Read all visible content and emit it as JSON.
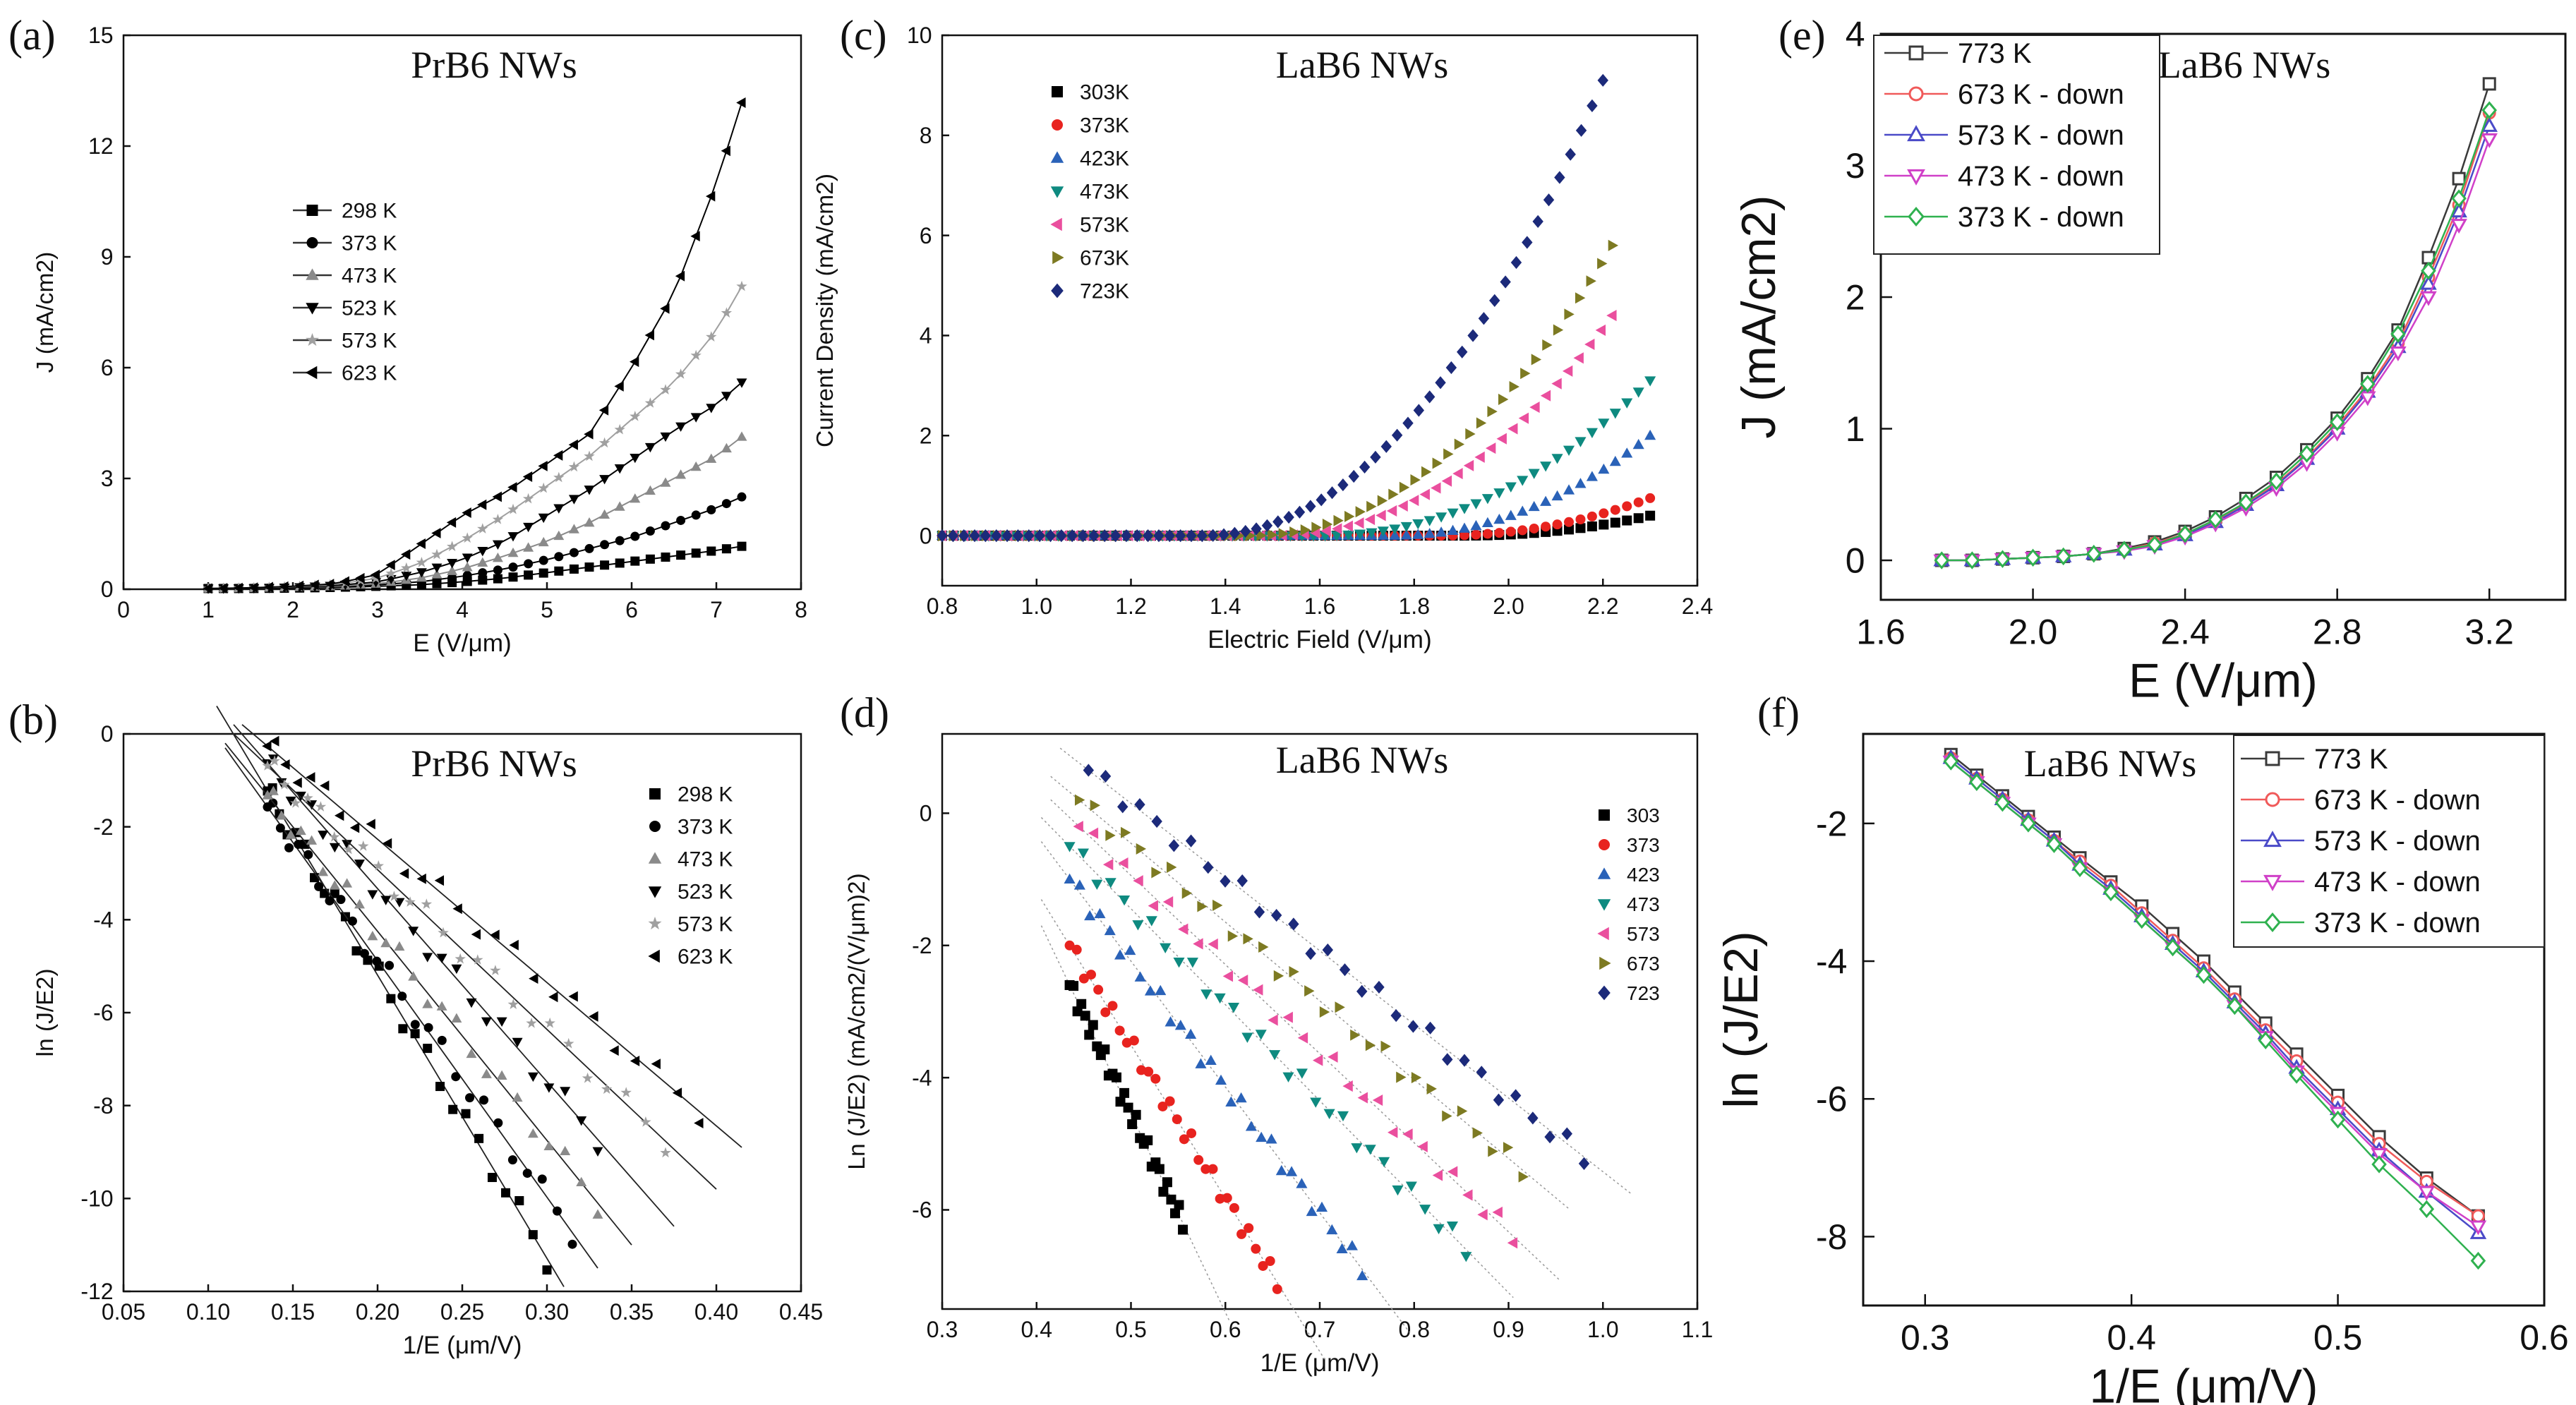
{
  "chart_data": [
    {
      "panel": "(a)",
      "type": "line",
      "title": "PrB6 NWs",
      "xlabel": "E (V/μm)",
      "ylabel": "J (mA/cm2)",
      "xlim": [
        0,
        8
      ],
      "ylim": [
        0,
        15
      ],
      "xticks": [
        0,
        1,
        2,
        3,
        4,
        5,
        6,
        7,
        8
      ],
      "yticks": [
        0,
        3,
        6,
        9,
        12,
        15
      ],
      "legend_position": "center-left",
      "x": [
        1.0,
        1.5,
        2.0,
        2.5,
        3.0,
        3.5,
        4.0,
        4.5,
        5.0,
        5.5,
        6.0,
        6.5,
        7.0,
        7.4
      ],
      "series": [
        {
          "name": "298 K",
          "marker": "square",
          "color": "#000000",
          "values": [
            0.02,
            0.02,
            0.03,
            0.05,
            0.08,
            0.12,
            0.2,
            0.3,
            0.45,
            0.6,
            0.75,
            0.9,
            1.05,
            1.2
          ]
        },
        {
          "name": "373 K",
          "marker": "circle",
          "color": "#000000",
          "values": [
            0.02,
            0.03,
            0.04,
            0.07,
            0.12,
            0.2,
            0.35,
            0.55,
            0.8,
            1.1,
            1.4,
            1.8,
            2.2,
            2.6
          ]
        },
        {
          "name": "473 K",
          "marker": "triangle-up",
          "color": "#8a8a8a",
          "values": [
            0.02,
            0.03,
            0.05,
            0.08,
            0.15,
            0.3,
            0.55,
            0.9,
            1.3,
            1.8,
            2.4,
            3.0,
            3.6,
            4.3
          ]
        },
        {
          "name": "523 K",
          "marker": "triangle-down",
          "color": "#000000",
          "values": [
            0.02,
            0.03,
            0.05,
            0.1,
            0.2,
            0.45,
            0.8,
            1.3,
            2.0,
            2.7,
            3.5,
            4.3,
            5.0,
            5.8
          ]
        },
        {
          "name": "573 K",
          "marker": "star",
          "color": "#a0a0a0",
          "values": [
            0.02,
            0.04,
            0.07,
            0.13,
            0.3,
            0.7,
            1.3,
            2.0,
            2.8,
            3.6,
            4.6,
            5.6,
            7.0,
            8.6
          ]
        },
        {
          "name": "623 K",
          "marker": "triangle-left",
          "color": "#000000",
          "values": [
            0.02,
            0.04,
            0.08,
            0.15,
            0.4,
            1.2,
            2.0,
            2.6,
            3.4,
            4.2,
            6.0,
            8.0,
            11.0,
            13.9
          ]
        }
      ]
    },
    {
      "panel": "(b)",
      "type": "scatter",
      "title": "PrB6 NWs",
      "xlabel": "1/E (μm/V)",
      "ylabel": "ln (J/E2)",
      "xlim": [
        0.05,
        0.45
      ],
      "ylim": [
        -12,
        0
      ],
      "xticks": [
        0.05,
        0.1,
        0.15,
        0.2,
        0.25,
        0.3,
        0.35,
        0.4,
        0.45
      ],
      "yticks": [
        -12,
        -10,
        -8,
        -6,
        -4,
        -2,
        0
      ],
      "legend_position": "top-right",
      "series": [
        {
          "name": "298 K",
          "marker": "square",
          "color": "#000000",
          "x_range": [
            0.135,
            0.3
          ],
          "fit": [
            0.105,
            0.6,
            0.31,
            -11.9
          ]
        },
        {
          "name": "373 K",
          "marker": "circle",
          "color": "#000000",
          "x_range": [
            0.135,
            0.315
          ],
          "fit": [
            0.11,
            -0.3,
            0.33,
            -11.5
          ]
        },
        {
          "name": "473 K",
          "marker": "triangle-up",
          "color": "#8a8a8a",
          "x_range": [
            0.135,
            0.33
          ],
          "fit": [
            0.11,
            -0.2,
            0.35,
            -11.0
          ]
        },
        {
          "name": "523 K",
          "marker": "triangle-down",
          "color": "#000000",
          "x_range": [
            0.135,
            0.33
          ],
          "fit": [
            0.115,
            0.2,
            0.375,
            -10.6
          ]
        },
        {
          "name": "573 K",
          "marker": "star",
          "color": "#a0a0a0",
          "x_range": [
            0.135,
            0.37
          ],
          "fit": [
            0.115,
            0.0,
            0.4,
            -9.8
          ]
        },
        {
          "name": "623 K",
          "marker": "triangle-left",
          "color": "#000000",
          "x_range": [
            0.135,
            0.39
          ],
          "fit": [
            0.12,
            0.2,
            0.415,
            -8.9
          ]
        }
      ]
    },
    {
      "panel": "(c)",
      "type": "scatter",
      "title": "LaB6 NWs",
      "xlabel": "Electric Field (V/μm)",
      "ylabel": "Current Density (mA/cm2)",
      "xlim": [
        0.8,
        2.4
      ],
      "ylim": [
        -1,
        10
      ],
      "xticks": [
        0.8,
        1.0,
        1.2,
        1.4,
        1.6,
        1.8,
        2.0,
        2.2,
        2.4
      ],
      "yticks": [
        0,
        2,
        4,
        6,
        8,
        10
      ],
      "legend_position": "top-left",
      "series": [
        {
          "name": "303K",
          "marker": "square",
          "color": "#000000",
          "x_end": 2.3,
          "y_end": 0.4,
          "onset": 1.9
        },
        {
          "name": "373K",
          "marker": "circle",
          "color": "#e8231f",
          "x_end": 2.3,
          "y_end": 0.75,
          "onset": 1.85
        },
        {
          "name": "423K",
          "marker": "triangle-up",
          "color": "#2a62b8",
          "x_end": 2.3,
          "y_end": 2.0,
          "onset": 1.75
        },
        {
          "name": "473K",
          "marker": "triangle-down",
          "color": "#0e8a80",
          "x_end": 2.3,
          "y_end": 3.1,
          "onset": 1.6
        },
        {
          "name": "573K",
          "marker": "triangle-left",
          "color": "#ea4f9e",
          "x_end": 2.22,
          "y_end": 4.4,
          "onset": 1.5
        },
        {
          "name": "673K",
          "marker": "triangle-right",
          "color": "#7d7a22",
          "x_end": 2.22,
          "y_end": 5.8,
          "onset": 1.45
        },
        {
          "name": "723K",
          "marker": "diamond",
          "color": "#1c2a7a",
          "x_end": 2.2,
          "y_end": 9.1,
          "onset": 1.35
        }
      ]
    },
    {
      "panel": "(d)",
      "type": "scatter",
      "title": "LaB6 NWs",
      "xlabel": "1/E (μm/V)",
      "ylabel": "Ln (J/E2) (mA/cm2/(V/μm)2)",
      "xlim": [
        0.3,
        1.1
      ],
      "ylim": [
        -7.5,
        1.2
      ],
      "xticks": [
        0.3,
        0.4,
        0.5,
        0.6,
        0.7,
        0.8,
        0.9,
        1.0,
        1.1
      ],
      "yticks": [
        -6,
        -4,
        -2,
        0
      ],
      "legend_position": "top-right",
      "series": [
        {
          "name": "303",
          "marker": "square",
          "color": "#000000",
          "start": [
            0.435,
            -2.6
          ],
          "end": [
            0.555,
            -6.2
          ]
        },
        {
          "name": "373",
          "marker": "circle",
          "color": "#e8231f",
          "start": [
            0.435,
            -2.0
          ],
          "end": [
            0.655,
            -7.1
          ]
        },
        {
          "name": "423",
          "marker": "triangle-up",
          "color": "#2a62b8",
          "start": [
            0.435,
            -1.0
          ],
          "end": [
            0.745,
            -6.9
          ]
        },
        {
          "name": "473",
          "marker": "triangle-down",
          "color": "#0e8a80",
          "start": [
            0.435,
            -0.5
          ],
          "end": [
            0.855,
            -6.6
          ]
        },
        {
          "name": "573",
          "marker": "triangle-left",
          "color": "#ea4f9e",
          "start": [
            0.445,
            -0.2
          ],
          "end": [
            0.905,
            -6.4
          ]
        },
        {
          "name": "673",
          "marker": "triangle-right",
          "color": "#7d7a22",
          "start": [
            0.445,
            0.2
          ],
          "end": [
            0.915,
            -5.4
          ]
        },
        {
          "name": "723",
          "marker": "diamond",
          "color": "#1c2a7a",
          "start": [
            0.455,
            0.65
          ],
          "end": [
            0.98,
            -5.2
          ]
        }
      ]
    },
    {
      "panel": "(e)",
      "type": "line",
      "title": "LaB6 NWs",
      "xlabel": "E (V/μm)",
      "ylabel": "J (mA/cm2)",
      "xlim": [
        1.6,
        3.4
      ],
      "ylim": [
        -0.3,
        4
      ],
      "xticks": [
        1.6,
        2.0,
        2.4,
        2.8,
        3.2
      ],
      "yticks": [
        0,
        1,
        2,
        3,
        4
      ],
      "legend_position": "top-left",
      "x": [
        1.76,
        1.84,
        1.92,
        2.0,
        2.08,
        2.16,
        2.24,
        2.32,
        2.4,
        2.48,
        2.56,
        2.64,
        2.72,
        2.8,
        2.88,
        2.96,
        3.04,
        3.12,
        3.2
      ],
      "series": [
        {
          "name": "773 K",
          "marker": "square-open",
          "color": "#3a3a3a",
          "values": [
            0.0,
            0.0,
            0.01,
            0.02,
            0.03,
            0.05,
            0.09,
            0.14,
            0.22,
            0.33,
            0.47,
            0.63,
            0.84,
            1.08,
            1.38,
            1.75,
            2.3,
            2.9,
            3.62
          ]
        },
        {
          "name": "673 K - down",
          "marker": "circle-open",
          "color": "#f05a5a",
          "values": [
            0.0,
            0.0,
            0.01,
            0.02,
            0.03,
            0.05,
            0.08,
            0.13,
            0.2,
            0.3,
            0.43,
            0.58,
            0.78,
            1.02,
            1.3,
            1.65,
            2.15,
            2.7,
            3.4
          ]
        },
        {
          "name": "573 K - down",
          "marker": "triangle-up-open",
          "color": "#4a4ac8",
          "values": [
            0.0,
            0.0,
            0.01,
            0.02,
            0.03,
            0.05,
            0.08,
            0.12,
            0.19,
            0.29,
            0.42,
            0.57,
            0.77,
            1.0,
            1.28,
            1.62,
            2.1,
            2.65,
            3.3
          ]
        },
        {
          "name": "473 K - down",
          "marker": "triangle-down-open",
          "color": "#d040c8",
          "values": [
            0.0,
            0.0,
            0.01,
            0.02,
            0.03,
            0.05,
            0.07,
            0.11,
            0.18,
            0.28,
            0.4,
            0.55,
            0.74,
            0.97,
            1.24,
            1.58,
            2.0,
            2.55,
            3.2
          ]
        },
        {
          "name": "373 K - down",
          "marker": "diamond-open",
          "color": "#2fb14f",
          "values": [
            0.0,
            0.0,
            0.01,
            0.02,
            0.03,
            0.05,
            0.08,
            0.12,
            0.2,
            0.31,
            0.44,
            0.6,
            0.81,
            1.05,
            1.34,
            1.72,
            2.2,
            2.75,
            3.42
          ]
        }
      ]
    },
    {
      "panel": "(f)",
      "type": "line",
      "title": "LaB6 NWs",
      "xlabel": "1/E (μm/V)",
      "ylabel": "ln (J/E2)",
      "xlim": [
        0.27,
        0.6
      ],
      "ylim": [
        -9,
        -0.7
      ],
      "xticks": [
        0.3,
        0.4,
        0.5,
        0.6
      ],
      "yticks": [
        -8,
        -6,
        -4,
        -2
      ],
      "legend_position": "top-right",
      "x": [
        0.3125,
        0.325,
        0.3375,
        0.35,
        0.3625,
        0.375,
        0.39,
        0.405,
        0.42,
        0.435,
        0.45,
        0.465,
        0.48,
        0.5,
        0.52,
        0.543,
        0.568
      ],
      "series": [
        {
          "name": "773 K",
          "marker": "square-open",
          "color": "#3a3a3a",
          "values": [
            -1.0,
            -1.3,
            -1.6,
            -1.9,
            -2.2,
            -2.5,
            -2.85,
            -3.2,
            -3.6,
            -4.0,
            -4.45,
            -4.9,
            -5.35,
            -5.95,
            -6.55,
            -7.15,
            -7.7
          ]
        },
        {
          "name": "673 K - down",
          "marker": "circle-open",
          "color": "#f05a5a",
          "values": [
            -1.05,
            -1.35,
            -1.65,
            -1.95,
            -2.25,
            -2.55,
            -2.9,
            -3.3,
            -3.7,
            -4.1,
            -4.55,
            -5.0,
            -5.45,
            -6.05,
            -6.65,
            -7.2,
            -7.7
          ]
        },
        {
          "name": "573 K - down",
          "marker": "triangle-up-open",
          "color": "#4a4ac8",
          "values": [
            -1.05,
            -1.35,
            -1.65,
            -1.95,
            -2.25,
            -2.6,
            -2.95,
            -3.35,
            -3.75,
            -4.15,
            -4.6,
            -5.05,
            -5.55,
            -6.15,
            -6.75,
            -7.35,
            -7.95
          ]
        },
        {
          "name": "473 K - down",
          "marker": "triangle-down-open",
          "color": "#d040c8",
          "values": [
            -1.1,
            -1.4,
            -1.7,
            -2.0,
            -2.3,
            -2.65,
            -3.0,
            -3.4,
            -3.8,
            -4.2,
            -4.65,
            -5.1,
            -5.6,
            -6.2,
            -6.8,
            -7.35,
            -7.85
          ]
        },
        {
          "name": "373 K - down",
          "marker": "diamond-open",
          "color": "#2fb14f",
          "values": [
            -1.1,
            -1.4,
            -1.7,
            -2.0,
            -2.3,
            -2.65,
            -3.0,
            -3.4,
            -3.8,
            -4.2,
            -4.65,
            -5.15,
            -5.65,
            -6.3,
            -6.95,
            -7.6,
            -8.35
          ]
        }
      ]
    }
  ]
}
